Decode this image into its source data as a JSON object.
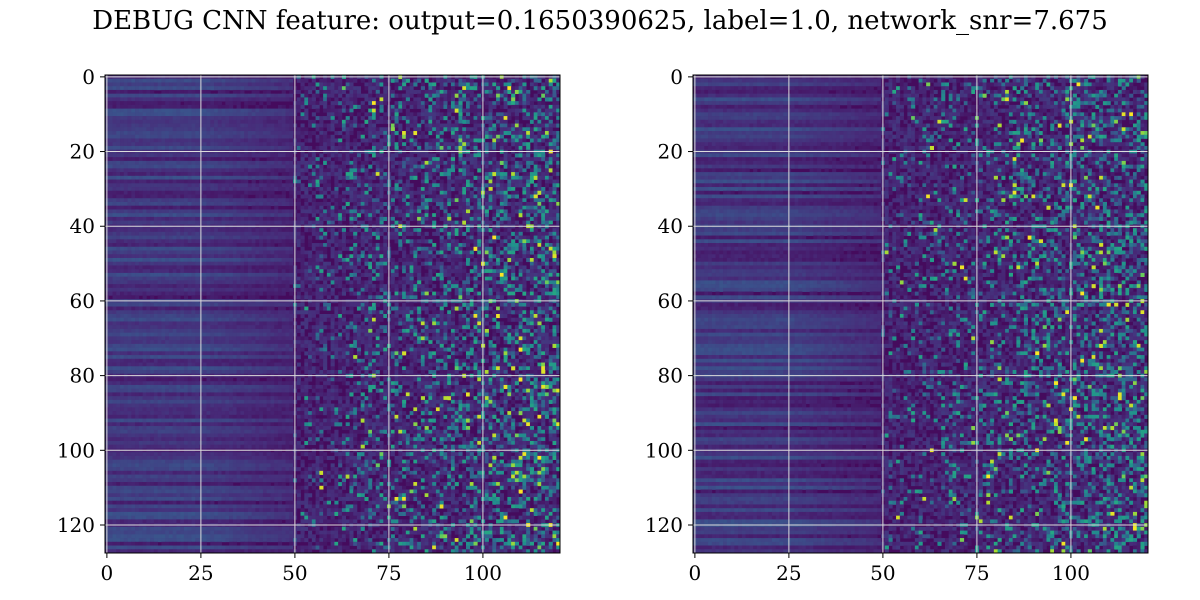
{
  "title": "DEBUG CNN feature: output=0.1650390625, label=1.0, network_snr=7.675",
  "colors": {
    "colormap": "viridis",
    "viridis_low": "#440154",
    "viridis_mid": "#21918c",
    "viridis_high": "#fde725",
    "grid": "#dcdcdc"
  },
  "chart_data": [
    {
      "type": "heatmap",
      "panel": "left",
      "title": "",
      "xlabel": "",
      "ylabel": "",
      "columns": 121,
      "rows": 128,
      "xlim": [
        -0.5,
        120.5
      ],
      "ylim": [
        127.5,
        -0.5
      ],
      "x_ticks": [
        0,
        25,
        50,
        75,
        100
      ],
      "y_ticks": [
        0,
        20,
        40,
        60,
        80,
        100,
        120
      ],
      "grid": true,
      "colormap": "viridis",
      "description_of_values": "low intensity on the left half (columns 0-50), increasingly noisy and bright speckles for columns above 50",
      "seed": 7
    },
    {
      "type": "heatmap",
      "panel": "right",
      "title": "",
      "xlabel": "",
      "ylabel": "",
      "columns": 121,
      "rows": 128,
      "xlim": [
        -0.5,
        120.5
      ],
      "ylim": [
        127.5,
        -0.5
      ],
      "x_ticks": [
        0,
        25,
        50,
        75,
        100
      ],
      "y_ticks": [
        0,
        20,
        40,
        60,
        80,
        100,
        120
      ],
      "grid": true,
      "colormap": "viridis",
      "description_of_values": "low intensity on the left half (columns 0-50), increasingly noisy and bright speckles for columns above 50",
      "seed": 13
    }
  ]
}
